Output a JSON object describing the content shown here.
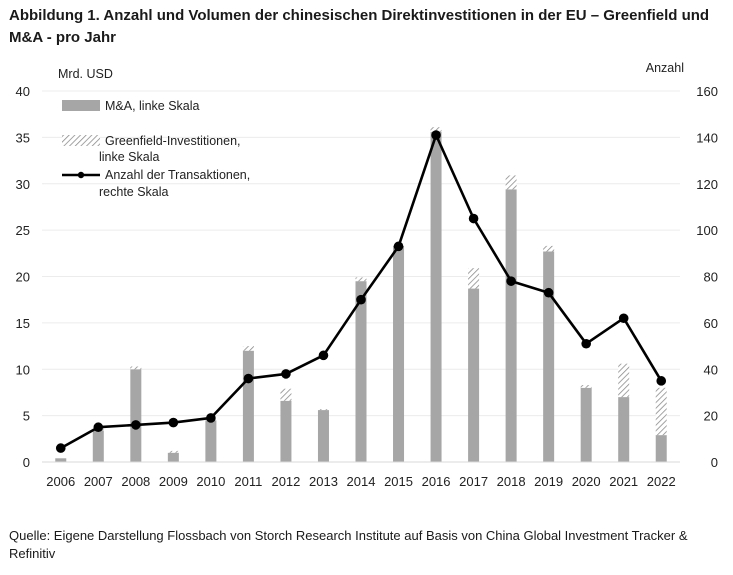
{
  "title": "Abbildung 1. Anzahl und Volumen der chinesischen Direktinvestitionen in der EU – Greenfield und M&A - pro Jahr",
  "source": "Quelle: Eigene Darstellung Flossbach von Storch Research Institute auf Basis von China Global Investment Tracker & Refinitiv",
  "colors": {
    "ma_bar": "#a6a6a6",
    "greenfield_hatch": "#8c8c8c",
    "line": "#000000",
    "grid": "#ececec"
  },
  "chart_data": {
    "type": "bar",
    "categories": [
      "2006",
      "2007",
      "2008",
      "2009",
      "2010",
      "2011",
      "2012",
      "2013",
      "2014",
      "2015",
      "2016",
      "2017",
      "2018",
      "2019",
      "2020",
      "2021",
      "2022"
    ],
    "ylabel_left": "Mrd. USD",
    "ylabel_right": "Anzahl",
    "ylim_left": [
      0,
      40
    ],
    "yticks_left": [
      0,
      5,
      10,
      15,
      20,
      25,
      30,
      35,
      40
    ],
    "ylim_right": [
      0,
      160
    ],
    "yticks_right": [
      0,
      20,
      40,
      60,
      80,
      100,
      120,
      140,
      160
    ],
    "series": [
      {
        "name": "M&A, linke Skala",
        "kind": "bar",
        "axis": "left",
        "values": [
          0.4,
          3.4,
          10.0,
          1.0,
          4.5,
          12.0,
          6.6,
          5.6,
          19.5,
          23.3,
          35.6,
          18.7,
          29.4,
          22.7,
          8.0,
          7.0,
          2.9
        ]
      },
      {
        "name": "Greenfield-Investitionen, linke Skala",
        "kind": "stacked-hatched-bar",
        "axis": "left",
        "values": [
          0.0,
          0.2,
          0.3,
          0.2,
          0.1,
          0.5,
          1.3,
          0.1,
          0.4,
          0.3,
          0.5,
          2.2,
          1.5,
          0.6,
          0.3,
          3.6,
          5.1
        ]
      },
      {
        "name": "Anzahl der Transaktionen, rechte Skala",
        "kind": "line",
        "axis": "right",
        "values": [
          6,
          15,
          16,
          17,
          19,
          36,
          38,
          46,
          70,
          93,
          141,
          105,
          78,
          73,
          51,
          62,
          35
        ]
      }
    ],
    "legend": [
      {
        "label": "M&A, linke Skala",
        "kind": "bar"
      },
      {
        "label": "Greenfield-Investitionen, linke Skala",
        "kind": "hatched"
      },
      {
        "label": "Anzahl der Transaktionen, rechte Skala",
        "kind": "line"
      }
    ],
    "legend_position": "top-left",
    "grid": true
  }
}
